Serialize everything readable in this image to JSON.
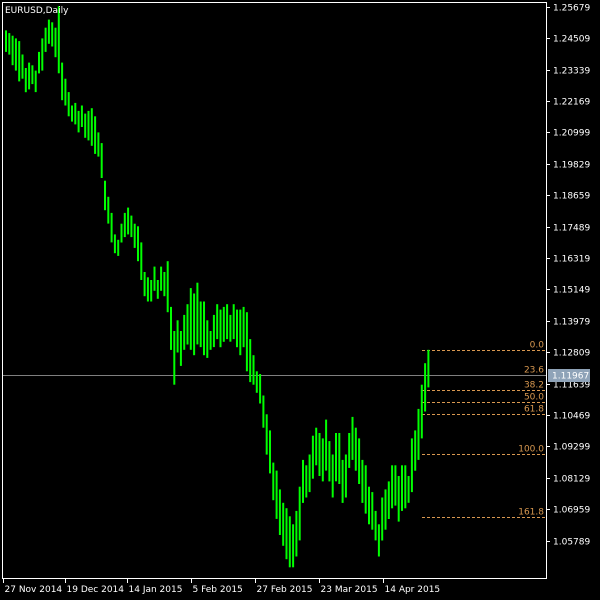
{
  "window": {
    "title": "EURUSD,Daily"
  },
  "colors": {
    "background": "#000000",
    "frame": "#ffffff",
    "candle": "#00ff00",
    "fibo": "#d89850",
    "price_line": "#7f7f7f",
    "price_tag_bg": "#8fa3b8",
    "axis_text": "#ffffff"
  },
  "axis": {
    "y_labels": [
      "1.25679",
      "1.24509",
      "1.23339",
      "1.22169",
      "1.20999",
      "1.19829",
      "1.18659",
      "1.17489",
      "1.16319",
      "1.15149",
      "1.13979",
      "1.12809",
      "1.11639",
      "1.10469",
      "1.09299",
      "1.08129",
      "1.06959",
      "1.05789"
    ],
    "x_labels": [
      "27 Nov 2014",
      "19 Dec 2014",
      "14 Jan 2015",
      "5 Feb 2015",
      "27 Feb 2015",
      "23 Mar 2015",
      "14 Apr 2015"
    ]
  },
  "current_price": "1.11967",
  "fibonacci": {
    "levels": [
      {
        "label": "0.0",
        "price": 1.1289
      },
      {
        "label": "23.6",
        "price": 1.1198
      },
      {
        "label": "38.2",
        "price": 1.1142
      },
      {
        "label": "50.0",
        "price": 1.1096
      },
      {
        "label": "61.8",
        "price": 1.1051
      },
      {
        "label": "100.0",
        "price": 1.0903
      },
      {
        "label": "161.8",
        "price": 1.0666
      }
    ]
  },
  "chart_data": {
    "type": "candlestick",
    "symbol": "EURUSD",
    "timeframe": "Daily",
    "ylim": [
      1.044,
      1.2582
    ],
    "x_ticks": [
      "27 Nov 2014",
      "19 Dec 2014",
      "14 Jan 2015",
      "5 Feb 2015",
      "27 Feb 2015",
      "23 Mar 2015",
      "14 Apr 2015"
    ],
    "high": [
      1.248,
      1.247,
      1.246,
      1.245,
      1.244,
      1.239,
      1.234,
      1.236,
      1.235,
      1.233,
      1.24,
      1.245,
      1.249,
      1.252,
      1.251,
      1.249,
      1.257,
      1.236,
      1.23,
      1.225,
      1.22,
      1.221,
      1.218,
      1.22,
      1.217,
      1.218,
      1.219,
      1.216,
      1.21,
      1.206,
      1.192,
      1.186,
      1.18,
      1.172,
      1.17,
      1.176,
      1.18,
      1.182,
      1.179,
      1.176,
      1.175,
      1.169,
      1.158,
      1.156,
      1.155,
      1.16,
      1.155,
      1.16,
      1.158,
      1.162,
      1.145,
      1.136,
      1.14,
      1.136,
      1.142,
      1.146,
      1.152,
      1.15,
      1.154,
      1.147,
      1.147,
      1.14,
      1.136,
      1.142,
      1.146,
      1.144,
      1.145,
      1.146,
      1.142,
      1.146,
      1.144,
      1.144,
      1.145,
      1.143,
      1.133,
      1.127,
      1.121,
      1.12,
      1.112,
      1.105,
      1.099,
      1.087,
      1.084,
      1.077,
      1.072,
      1.07,
      1.067,
      1.064,
      1.069,
      1.078,
      1.088,
      1.086,
      1.09,
      1.097,
      1.1,
      1.098,
      1.096,
      1.103,
      1.095,
      1.09,
      1.098,
      1.098,
      1.088,
      1.09,
      1.098,
      1.104,
      1.1,
      1.096,
      1.088,
      1.086,
      1.078,
      1.076,
      1.069,
      1.064,
      1.074,
      1.077,
      1.08,
      1.086,
      1.086,
      1.082,
      1.086,
      1.086,
      1.082,
      1.096,
      1.099,
      1.107,
      1.116,
      1.124,
      1.129
    ],
    "low": [
      1.24,
      1.239,
      1.235,
      1.233,
      1.229,
      1.23,
      1.225,
      1.226,
      1.228,
      1.225,
      1.232,
      1.233,
      1.24,
      1.243,
      1.242,
      1.238,
      1.232,
      1.222,
      1.22,
      1.216,
      1.214,
      1.213,
      1.21,
      1.212,
      1.208,
      1.207,
      1.205,
      1.202,
      1.201,
      1.193,
      1.181,
      1.176,
      1.169,
      1.165,
      1.164,
      1.169,
      1.171,
      1.172,
      1.171,
      1.167,
      1.162,
      1.155,
      1.149,
      1.147,
      1.147,
      1.151,
      1.148,
      1.151,
      1.149,
      1.143,
      1.129,
      1.116,
      1.128,
      1.123,
      1.129,
      1.131,
      1.129,
      1.127,
      1.131,
      1.13,
      1.127,
      1.126,
      1.129,
      1.13,
      1.133,
      1.13,
      1.132,
      1.133,
      1.132,
      1.133,
      1.13,
      1.127,
      1.13,
      1.121,
      1.117,
      1.116,
      1.113,
      1.109,
      1.1,
      1.09,
      1.083,
      1.073,
      1.066,
      1.06,
      1.056,
      1.051,
      1.048,
      1.048,
      1.052,
      1.058,
      1.072,
      1.074,
      1.076,
      1.081,
      1.086,
      1.082,
      1.08,
      1.084,
      1.08,
      1.074,
      1.08,
      1.079,
      1.072,
      1.074,
      1.085,
      1.088,
      1.084,
      1.079,
      1.072,
      1.068,
      1.064,
      1.062,
      1.058,
      1.052,
      1.058,
      1.062,
      1.066,
      1.07,
      1.071,
      1.065,
      1.069,
      1.07,
      1.072,
      1.076,
      1.084,
      1.088,
      1.096,
      1.106,
      1.115
    ]
  }
}
